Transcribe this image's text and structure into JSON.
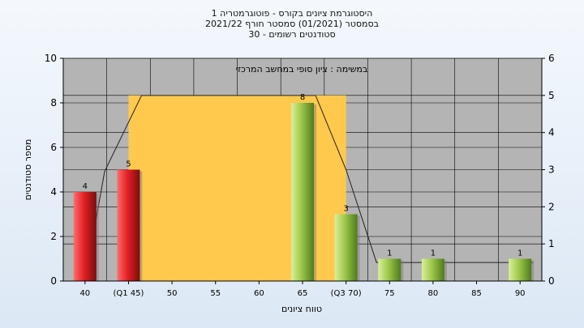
{
  "titles": {
    "line1": "היסטוגרמת ציונים בקורס - פוטוגרמטריה 1",
    "line2": "בסמסטר  (01/2021)  סמסטר חורף  2021/22",
    "line3": "סטודנטים רשומים - 30"
  },
  "chart_data": {
    "type": "bar",
    "annotation": "במשימה : ציון סופי במחשב המרכזי",
    "xlabel": "טווח ציונים",
    "ylabel": "מספר סטודנטים",
    "ylim": [
      0,
      10
    ],
    "y2lim": [
      0,
      6
    ],
    "yticks": [
      0,
      2,
      4,
      6,
      8,
      10
    ],
    "y2ticks": [
      0,
      1,
      2,
      3,
      4,
      5,
      6
    ],
    "grid": true,
    "categories": [
      "40",
      "(Q1 45)",
      "50",
      "55",
      "60",
      "65",
      "(Q3 70)",
      "75",
      "80",
      "85",
      "90"
    ],
    "values": [
      4,
      5,
      0,
      0,
      0,
      8,
      3,
      1,
      1,
      0,
      1
    ],
    "value_labels": [
      "4",
      "5",
      "",
      "",
      "",
      "8",
      "3",
      "1",
      "1",
      "",
      "1"
    ],
    "bar_colors": [
      "#e8262a",
      "#e8262a",
      "",
      "",
      "",
      "#9dc84a",
      "#9dc84a",
      "#9dc84a",
      "#9dc84a",
      "",
      "#9dc84a"
    ],
    "band": {
      "from_category": "(Q1 45)",
      "to_category": "(Q3 70)",
      "color": "#ffc94d"
    },
    "line_secondary": [
      [
        0,
        0
      ],
      [
        0.45,
        2.95
      ],
      [
        1.3,
        5.0
      ],
      [
        5.3,
        5.0
      ],
      [
        6.0,
        3.0
      ],
      [
        6.7,
        0.5
      ],
      [
        10.3,
        0.5
      ]
    ],
    "colors": {
      "plot_bg": "#b4b4b4",
      "grid": "#000000",
      "line": "#222222"
    }
  }
}
